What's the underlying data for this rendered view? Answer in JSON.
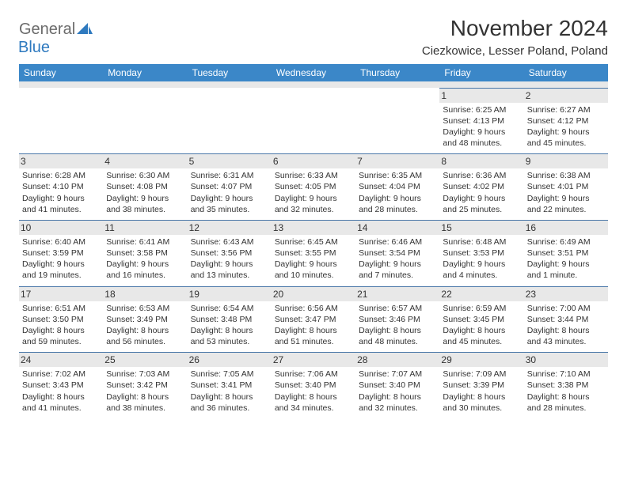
{
  "brand": {
    "part1": "General",
    "part2": "Blue"
  },
  "title": "November 2024",
  "location": "Ciezkowice, Lesser Poland, Poland",
  "colors": {
    "header_bg": "#3b87c8",
    "header_text": "#ffffff",
    "spacer_bg": "#e8e8e8",
    "cell_border": "#4a77a8",
    "text": "#333333",
    "logo_gray": "#6b6b6b",
    "logo_blue": "#2f7abf"
  },
  "weekday_labels": [
    "Sunday",
    "Monday",
    "Tuesday",
    "Wednesday",
    "Thursday",
    "Friday",
    "Saturday"
  ],
  "weeks": [
    [
      null,
      null,
      null,
      null,
      null,
      {
        "n": "1",
        "sr": "6:25 AM",
        "ss": "4:13 PM",
        "dl": "9 hours and 48 minutes."
      },
      {
        "n": "2",
        "sr": "6:27 AM",
        "ss": "4:12 PM",
        "dl": "9 hours and 45 minutes."
      }
    ],
    [
      {
        "n": "3",
        "sr": "6:28 AM",
        "ss": "4:10 PM",
        "dl": "9 hours and 41 minutes."
      },
      {
        "n": "4",
        "sr": "6:30 AM",
        "ss": "4:08 PM",
        "dl": "9 hours and 38 minutes."
      },
      {
        "n": "5",
        "sr": "6:31 AM",
        "ss": "4:07 PM",
        "dl": "9 hours and 35 minutes."
      },
      {
        "n": "6",
        "sr": "6:33 AM",
        "ss": "4:05 PM",
        "dl": "9 hours and 32 minutes."
      },
      {
        "n": "7",
        "sr": "6:35 AM",
        "ss": "4:04 PM",
        "dl": "9 hours and 28 minutes."
      },
      {
        "n": "8",
        "sr": "6:36 AM",
        "ss": "4:02 PM",
        "dl": "9 hours and 25 minutes."
      },
      {
        "n": "9",
        "sr": "6:38 AM",
        "ss": "4:01 PM",
        "dl": "9 hours and 22 minutes."
      }
    ],
    [
      {
        "n": "10",
        "sr": "6:40 AM",
        "ss": "3:59 PM",
        "dl": "9 hours and 19 minutes."
      },
      {
        "n": "11",
        "sr": "6:41 AM",
        "ss": "3:58 PM",
        "dl": "9 hours and 16 minutes."
      },
      {
        "n": "12",
        "sr": "6:43 AM",
        "ss": "3:56 PM",
        "dl": "9 hours and 13 minutes."
      },
      {
        "n": "13",
        "sr": "6:45 AM",
        "ss": "3:55 PM",
        "dl": "9 hours and 10 minutes."
      },
      {
        "n": "14",
        "sr": "6:46 AM",
        "ss": "3:54 PM",
        "dl": "9 hours and 7 minutes."
      },
      {
        "n": "15",
        "sr": "6:48 AM",
        "ss": "3:53 PM",
        "dl": "9 hours and 4 minutes."
      },
      {
        "n": "16",
        "sr": "6:49 AM",
        "ss": "3:51 PM",
        "dl": "9 hours and 1 minute."
      }
    ],
    [
      {
        "n": "17",
        "sr": "6:51 AM",
        "ss": "3:50 PM",
        "dl": "8 hours and 59 minutes."
      },
      {
        "n": "18",
        "sr": "6:53 AM",
        "ss": "3:49 PM",
        "dl": "8 hours and 56 minutes."
      },
      {
        "n": "19",
        "sr": "6:54 AM",
        "ss": "3:48 PM",
        "dl": "8 hours and 53 minutes."
      },
      {
        "n": "20",
        "sr": "6:56 AM",
        "ss": "3:47 PM",
        "dl": "8 hours and 51 minutes."
      },
      {
        "n": "21",
        "sr": "6:57 AM",
        "ss": "3:46 PM",
        "dl": "8 hours and 48 minutes."
      },
      {
        "n": "22",
        "sr": "6:59 AM",
        "ss": "3:45 PM",
        "dl": "8 hours and 45 minutes."
      },
      {
        "n": "23",
        "sr": "7:00 AM",
        "ss": "3:44 PM",
        "dl": "8 hours and 43 minutes."
      }
    ],
    [
      {
        "n": "24",
        "sr": "7:02 AM",
        "ss": "3:43 PM",
        "dl": "8 hours and 41 minutes."
      },
      {
        "n": "25",
        "sr": "7:03 AM",
        "ss": "3:42 PM",
        "dl": "8 hours and 38 minutes."
      },
      {
        "n": "26",
        "sr": "7:05 AM",
        "ss": "3:41 PM",
        "dl": "8 hours and 36 minutes."
      },
      {
        "n": "27",
        "sr": "7:06 AM",
        "ss": "3:40 PM",
        "dl": "8 hours and 34 minutes."
      },
      {
        "n": "28",
        "sr": "7:07 AM",
        "ss": "3:40 PM",
        "dl": "8 hours and 32 minutes."
      },
      {
        "n": "29",
        "sr": "7:09 AM",
        "ss": "3:39 PM",
        "dl": "8 hours and 30 minutes."
      },
      {
        "n": "30",
        "sr": "7:10 AM",
        "ss": "3:38 PM",
        "dl": "8 hours and 28 minutes."
      }
    ]
  ],
  "labels": {
    "sunrise": "Sunrise:",
    "sunset": "Sunset:",
    "daylight": "Daylight:"
  }
}
